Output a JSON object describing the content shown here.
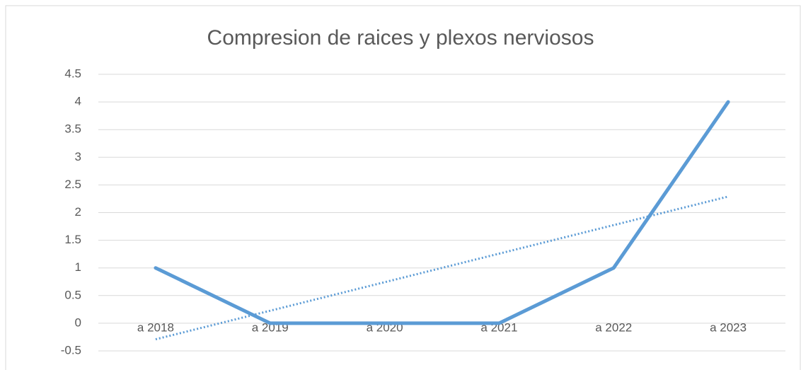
{
  "chart_data": {
    "type": "line",
    "title": "Compresion de raices y plexos nerviosos",
    "categories": [
      "a 2018",
      "a 2019",
      "a 2020",
      "a 2021",
      "a 2022",
      "a 2023"
    ],
    "values": [
      1,
      0,
      0,
      0,
      1,
      4
    ],
    "color": "#5b9bd5",
    "trendline": {
      "values": [
        -0.29,
        2.29
      ],
      "color": "#5b9bd5",
      "style": "dotted"
    },
    "ylim": [
      -0.5,
      4.5
    ],
    "yticks": [
      -0.5,
      0,
      0.5,
      1,
      1.5,
      2,
      2.5,
      3,
      3.5,
      4,
      4.5
    ],
    "grid": true
  }
}
